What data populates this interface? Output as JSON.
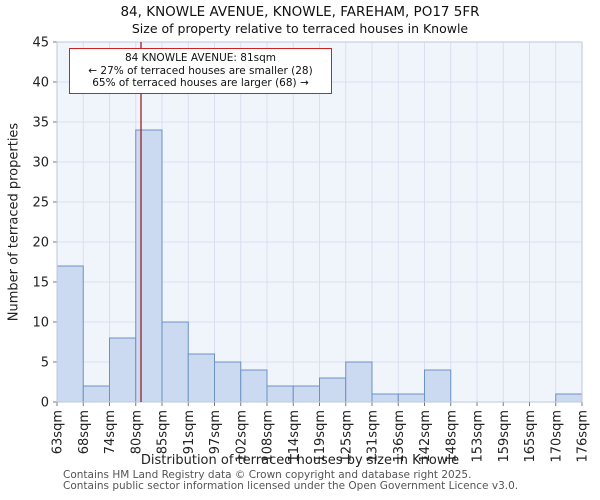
{
  "chart_data": {
    "type": "bar",
    "title": "84, KNOWLE AVENUE, KNOWLE, FAREHAM, PO17 5FR",
    "subtitle": "Size of property relative to terraced houses in Knowle",
    "categories": [
      "63sqm",
      "68sqm",
      "74sqm",
      "80sqm",
      "85sqm",
      "91sqm",
      "97sqm",
      "102sqm",
      "108sqm",
      "114sqm",
      "119sqm",
      "125sqm",
      "131sqm",
      "136sqm",
      "142sqm",
      "148sqm",
      "153sqm",
      "159sqm",
      "165sqm",
      "170sqm",
      "176sqm"
    ],
    "values": [
      17,
      2,
      8,
      34,
      10,
      6,
      5,
      4,
      2,
      2,
      3,
      5,
      1,
      1,
      4,
      0,
      0,
      0,
      0,
      1
    ],
    "xlabel": "Distribution of terraced houses by size in Knowle",
    "ylabel": "Number of terraced properties",
    "ylim": [
      0,
      45
    ],
    "ytick_step": 5,
    "grid": true,
    "legend": "none",
    "marker": {
      "value_sqm": 81,
      "smaller_pct": 27,
      "smaller_count": 28,
      "larger_pct": 65,
      "larger_count": 68
    },
    "annotation": {
      "line1": "84 KNOWLE AVENUE: 81sqm",
      "line2": "← 27% of terraced houses are smaller (28)",
      "line3": "65% of terraced houses are larger (68) →"
    },
    "colors": {
      "bar_fill": "#ccdaf1",
      "bar_stroke": "#6d92c5",
      "plot_bg": "#f0f4fb",
      "grid_line": "#d8dff0",
      "plot_border": "#bcc8dd",
      "marker_line": "#992222",
      "annotation_border": "#cc2222",
      "tick_text": "#222222"
    }
  },
  "footer": {
    "line1": "Contains HM Land Registry data © Crown copyright and database right 2025.",
    "line2": "Contains public sector information licensed under the Open Government Licence v3.0."
  }
}
